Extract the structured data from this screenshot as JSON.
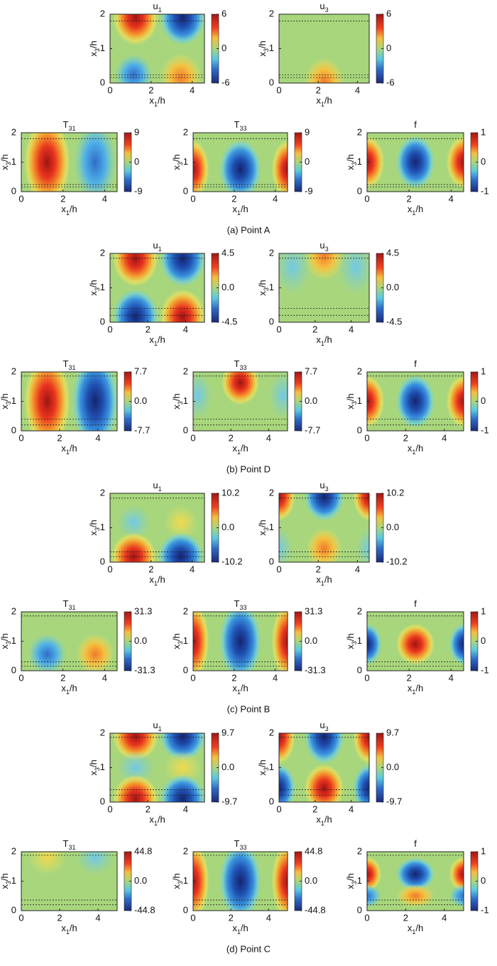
{
  "axis_labels": {
    "x": [
      "x",
      "1",
      "/h"
    ],
    "y": [
      "x",
      "3",
      "/h"
    ]
  },
  "xticks": [
    0,
    2,
    4
  ],
  "yticks": [
    0,
    1,
    2
  ],
  "ylim": [
    0,
    2
  ],
  "groups": [
    {
      "caption": "(a) Point A",
      "xlim": [
        0,
        4.6
      ],
      "panels": [
        {
          "title": "u",
          "sub": "1",
          "clim": [
            -6,
            6
          ],
          "cticks": [
            6,
            0,
            -6
          ]
        },
        {
          "title": "u",
          "sub": "3",
          "clim": [
            -6,
            6
          ],
          "cticks": [
            6,
            0,
            -6
          ]
        },
        {
          "title": "T",
          "sub": "31",
          "clim": [
            -9,
            9
          ],
          "cticks": [
            9,
            0,
            -9
          ]
        },
        {
          "title": "T",
          "sub": "33",
          "clim": [
            -9,
            9
          ],
          "cticks": [
            9,
            0,
            -9
          ]
        },
        {
          "title": "f",
          "clim": [
            -1,
            1
          ],
          "cticks": [
            1,
            0,
            -1
          ]
        }
      ]
    },
    {
      "caption": "(b) Point D",
      "xlim": [
        0,
        5
      ],
      "panels": [
        {
          "title": "u",
          "sub": "1",
          "clim": [
            -4.5,
            4.5
          ],
          "cticks": [
            4.5,
            {
              "value": 0,
              "label": "0.0"
            },
            -4.5
          ]
        },
        {
          "title": "u",
          "sub": "3",
          "clim": [
            -4.5,
            4.5
          ],
          "cticks": [
            4.5,
            {
              "value": 0,
              "label": "0.0"
            },
            -4.5
          ]
        },
        {
          "title": "T",
          "sub": "31",
          "clim": [
            -7.7,
            7.7
          ],
          "cticks": [
            7.7,
            {
              "value": 0,
              "label": "0.0"
            },
            -7.7
          ]
        },
        {
          "title": "T",
          "sub": "33",
          "clim": [
            -7.7,
            7.7
          ],
          "cticks": [
            7.7,
            {
              "value": 0,
              "label": "0.0"
            },
            -7.7
          ]
        },
        {
          "title": "f",
          "clim": [
            -1,
            1
          ],
          "cticks": [
            1,
            0,
            -1
          ]
        }
      ]
    },
    {
      "caption": "(c) Point B",
      "xlim": [
        0,
        4.6
      ],
      "panels": [
        {
          "title": "u",
          "sub": "1",
          "clim": [
            -10.2,
            10.2
          ],
          "cticks": [
            10.2,
            {
              "value": 0,
              "label": "0.0"
            },
            -10.2
          ]
        },
        {
          "title": "u",
          "sub": "3",
          "clim": [
            -10.2,
            10.2
          ],
          "cticks": [
            10.2,
            {
              "value": 0,
              "label": "0.0"
            },
            -10.2
          ]
        },
        {
          "title": "T",
          "sub": "31",
          "clim": [
            -31.3,
            31.3
          ],
          "cticks": [
            31.3,
            {
              "value": 0,
              "label": "0.0"
            },
            -31.3
          ]
        },
        {
          "title": "T",
          "sub": "33",
          "clim": [
            -31.3,
            31.3
          ],
          "cticks": [
            31.3,
            {
              "value": 0,
              "label": "0.0"
            },
            -31.3
          ]
        },
        {
          "title": "f",
          "clim": [
            -1,
            1
          ],
          "cticks": [
            1,
            0,
            -1
          ]
        }
      ]
    },
    {
      "caption": "(d) Point C",
      "xlim": [
        0,
        5
      ],
      "panels": [
        {
          "title": "u",
          "sub": "1",
          "clim": [
            -9.7,
            9.7
          ],
          "cticks": [
            9.7,
            {
              "value": 0,
              "label": "0.0"
            },
            -9.7
          ]
        },
        {
          "title": "u",
          "sub": "3",
          "clim": [
            -9.7,
            9.7
          ],
          "cticks": [
            9.7,
            {
              "value": 0,
              "label": "0.0"
            },
            -9.7
          ]
        },
        {
          "title": "T",
          "sub": "31",
          "clim": [
            -44.8,
            44.8
          ],
          "cticks": [
            44.8,
            {
              "value": 0,
              "label": "0.0"
            },
            -44.8
          ]
        },
        {
          "title": "T",
          "sub": "33",
          "clim": [
            -44.8,
            44.8
          ],
          "cticks": [
            44.8,
            {
              "value": 0,
              "label": "0.0"
            },
            -44.8
          ]
        },
        {
          "title": "f",
          "clim": [
            -1,
            1
          ],
          "cticks": [
            1,
            0,
            -1
          ]
        }
      ]
    }
  ]
}
